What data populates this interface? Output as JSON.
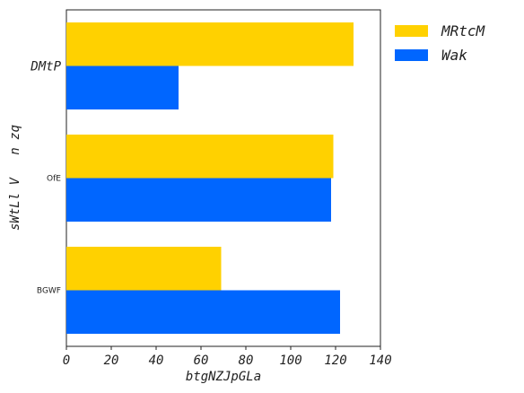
{
  "chart_data": {
    "type": "bar",
    "orientation": "horizontal",
    "categories": [
      "DMtP",
      "OfE",
      "BGWF"
    ],
    "series": [
      {
        "name": "MRtcM",
        "color": "#FFD100",
        "values": [
          128,
          119,
          69
        ]
      },
      {
        "name": "Wak",
        "color": "#0066FF",
        "values": [
          50,
          118,
          122
        ]
      }
    ],
    "xlabel": "btgNZJpGLa",
    "ylabel": "sWtLl V   n zq",
    "xlim": [
      0,
      140
    ],
    "xticks": [
      0,
      20,
      40,
      60,
      80,
      100,
      120,
      140
    ],
    "grid": false,
    "legend": "outside-top-right"
  }
}
